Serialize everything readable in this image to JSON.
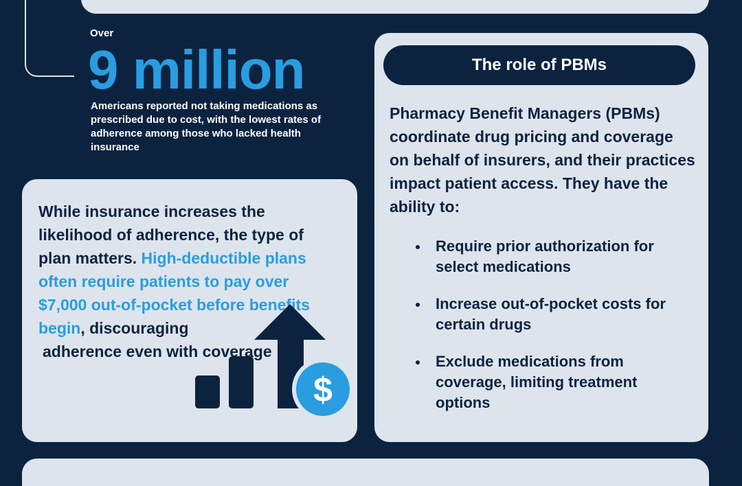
{
  "colors": {
    "navy": "#0c2340",
    "panel": "#dde4ec",
    "accent": "#2a9de0",
    "white": "#ffffff"
  },
  "stat": {
    "over": "Over",
    "number": "9 million",
    "desc": "Americans reported not taking medications as prescribed due to cost, with the lowest rates of adherence among those who lacked health insurance"
  },
  "insurance_card": {
    "text_lead": "While insurance increases the likelihood of adherence, the type of plan matters.",
    "text_highlight": "High-deductible plans often require patients to pay over $7,000 out-of-pocket before benefits begin",
    "text_tail": ", discouraging",
    "text_cont": "adherence even with coverage",
    "graphic_icons": [
      "bar-chart-icon",
      "up-arrow-icon",
      "dollar-coin-icon"
    ],
    "dollar_symbol": "$"
  },
  "pbm_card": {
    "title": "The role of PBMs",
    "intro": "Pharmacy Benefit Managers (PBMs) coordinate drug pricing and coverage on behalf of insurers, and their practices impact patient access. They have the ability to:",
    "bullets": [
      "Require prior authorization for select medications",
      "Increase out-of-pocket costs for certain drugs",
      "Exclude medications from coverage, limiting treatment options"
    ]
  }
}
